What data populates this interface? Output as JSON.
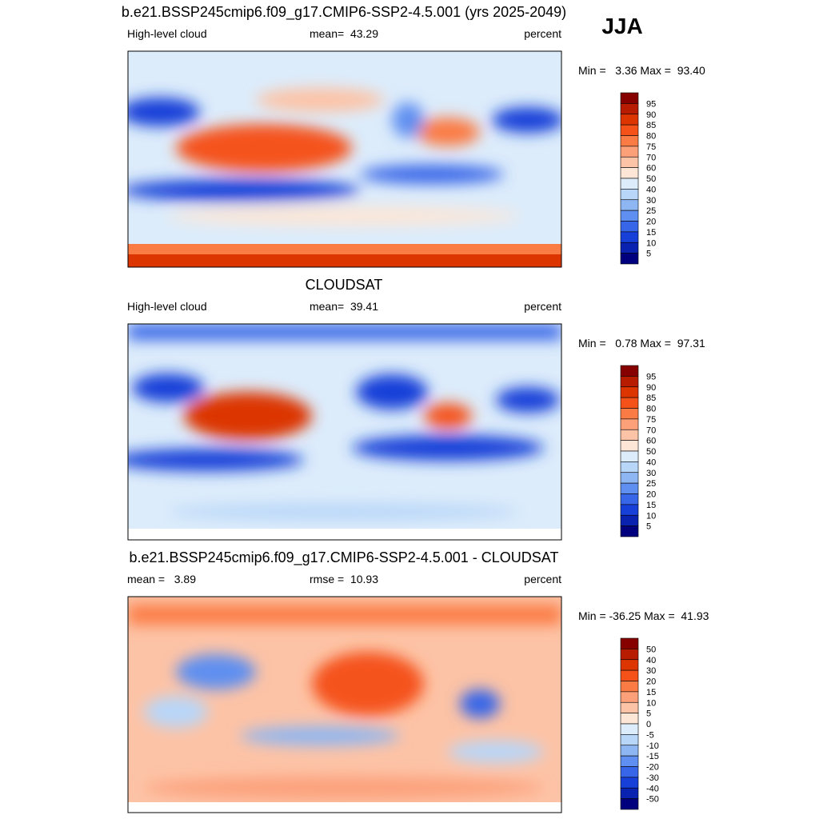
{
  "header": {
    "case_title": "b.e21.BSSP245cmip6.f09_g17.CMIP6-SSP2-4.5.001 (yrs 2025-2049)",
    "season": "JJA"
  },
  "colorbar_colors": [
    "#870000",
    "#b81c00",
    "#dc3500",
    "#f5521a",
    "#fb7b45",
    "#fca07a",
    "#fdc3a6",
    "#fde6d6",
    "#dcecfb",
    "#b8d6f8",
    "#8db6f3",
    "#5f8ff0",
    "#3866e8",
    "#1640d8",
    "#0a22b0",
    "#00007f"
  ],
  "panels": [
    {
      "left": "High-level cloud",
      "center": "mean=  43.29",
      "right": "percent",
      "minmax": "Min =   3.36 Max =  93.40",
      "levels": [
        95,
        90,
        85,
        80,
        75,
        70,
        60,
        50,
        40,
        30,
        25,
        20,
        15,
        10,
        5
      ]
    },
    {
      "title": "CLOUDSAT",
      "left": "High-level cloud",
      "center": "mean=  39.41",
      "right": "percent",
      "minmax": "Min =   0.78 Max =  97.31",
      "levels": [
        95,
        90,
        85,
        80,
        75,
        70,
        60,
        50,
        40,
        30,
        25,
        20,
        15,
        10,
        5
      ]
    },
    {
      "title": "b.e21.BSSP245cmip6.f09_g17.CMIP6-SSP2-4.5.001 - CLOUDSAT",
      "left": "mean =   3.89",
      "center": "rmse =  10.93",
      "right": "percent",
      "minmax": "Min = -36.25 Max =  41.93",
      "levels": [
        50,
        40,
        30,
        20,
        15,
        10,
        5,
        0,
        -5,
        -10,
        -15,
        -20,
        -30,
        -40,
        -50
      ]
    }
  ]
}
